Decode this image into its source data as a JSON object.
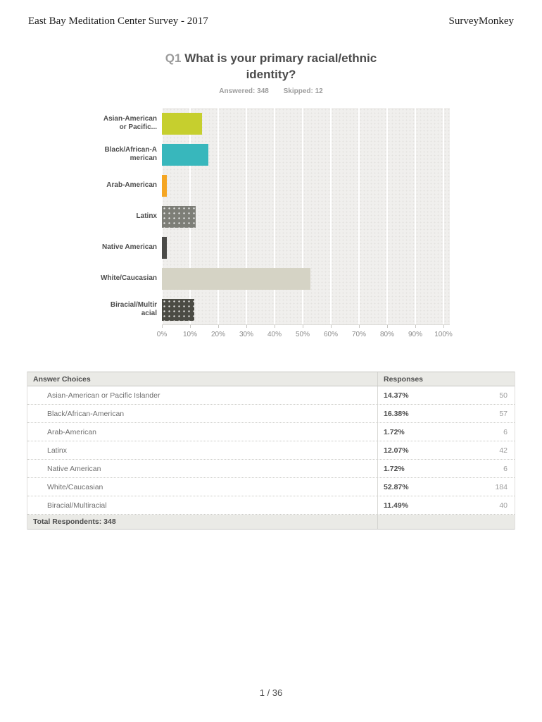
{
  "page": {
    "header_left": "East Bay Meditation Center Survey - 2017",
    "header_right": "SurveyMonkey",
    "footer_page": "1 / 36"
  },
  "question": {
    "number": "Q1",
    "title": "What is your primary racial/ethnic identity?",
    "answered_label": "Answered: 348",
    "skipped_label": "Skipped: 12"
  },
  "chart_data": {
    "type": "bar",
    "orientation": "horizontal",
    "title": "Q1 What is your primary racial/ethnic identity?",
    "categories": [
      "Asian-American or Pacific Islander",
      "Black/African-American",
      "Arab-American",
      "Latinx",
      "Native American",
      "White/Caucasian",
      "Biracial/Multiracial"
    ],
    "categories_display": [
      [
        "Asian-American",
        "or Pacific..."
      ],
      [
        "Black/African-A",
        "merican"
      ],
      [
        "Arab-American"
      ],
      [
        "Latinx"
      ],
      [
        "Native American"
      ],
      [
        "White/Caucasian"
      ],
      [
        "Biracial/Multir",
        "acial"
      ]
    ],
    "values": [
      14.37,
      16.38,
      1.72,
      12.07,
      1.72,
      52.87,
      11.49
    ],
    "colors": [
      "#c6cf2e",
      "#38b7bc",
      "#f5a623",
      "#7d7e77",
      "#4b4b48",
      "#d5d3c5",
      "#4b4b44"
    ],
    "dotted": [
      false,
      false,
      false,
      true,
      false,
      false,
      true
    ],
    "x_ticks": [
      "0%",
      "10%",
      "20%",
      "30%",
      "40%",
      "50%",
      "60%",
      "70%",
      "80%",
      "90%",
      "100%"
    ],
    "xlim": [
      0,
      100
    ],
    "grid": true,
    "plot_background": "#f0efed",
    "gridline_color": "#ffffff"
  },
  "table": {
    "col_headers": [
      "Answer Choices",
      "Responses"
    ],
    "rows": [
      {
        "label": "Asian-American or Pacific Islander",
        "percent": "14.37%",
        "count": "50"
      },
      {
        "label": "Black/African-American",
        "percent": "16.38%",
        "count": "57"
      },
      {
        "label": "Arab-American",
        "percent": "1.72%",
        "count": "6"
      },
      {
        "label": "Latinx",
        "percent": "12.07%",
        "count": "42"
      },
      {
        "label": "Native American",
        "percent": "1.72%",
        "count": "6"
      },
      {
        "label": "White/Caucasian",
        "percent": "52.87%",
        "count": "184"
      },
      {
        "label": "Biracial/Multiracial",
        "percent": "11.49%",
        "count": "40"
      }
    ],
    "total_label": "Total Respondents: 348"
  }
}
